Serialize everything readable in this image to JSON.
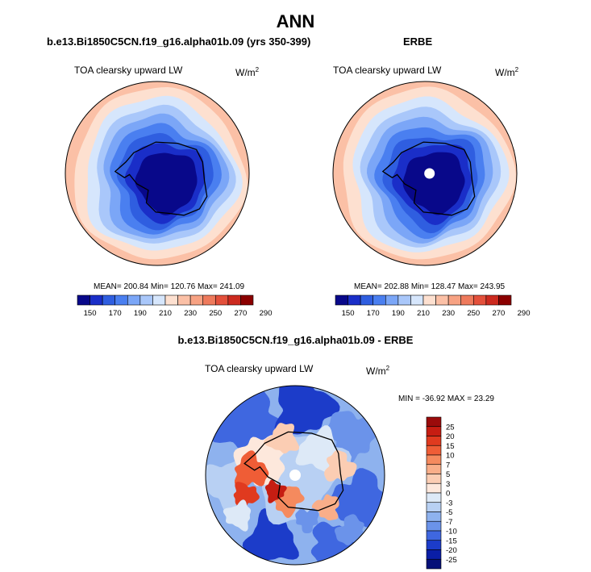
{
  "page": {
    "title": "ANN",
    "left_title": "b.e13.Bi1850C5CN.f19_g16.alpha01b.09 (yrs 350-399)",
    "right_title": "ERBE",
    "diff_title": "b.e13.Bi1850C5CN.f19_g16.alpha01b.09 - ERBE"
  },
  "chart_data": [
    {
      "type": "heatmap",
      "projection": "south-polar-stereographic",
      "name": "model",
      "variable": "TOA clearsky upward LW",
      "units": "W/m",
      "units_exponent": "2",
      "stats_text": "MEAN= 200.84  Min= 120.76  Max= 241.09",
      "mean": 200.84,
      "min": 120.76,
      "max": 241.09,
      "levels": [
        "150",
        "170",
        "190",
        "210",
        "230",
        "250",
        "270",
        "290"
      ],
      "colors": [
        "#08088a",
        "#1a2ec8",
        "#2f5ee0",
        "#4a7ff0",
        "#7ba6f7",
        "#a9c7fa",
        "#d6e6fc",
        "#fde0d0",
        "#fbc0a6",
        "#f7a283",
        "#ee7a5c",
        "#e3503b",
        "#cc2a1f",
        "#8b0000"
      ]
    },
    {
      "type": "heatmap",
      "projection": "south-polar-stereographic",
      "name": "observations",
      "variable": "TOA clearsky upward LW",
      "units": "W/m",
      "units_exponent": "2",
      "stats_text": "MEAN= 202.88  Min= 128.47  Max= 243.95",
      "mean": 202.88,
      "min": 128.47,
      "max": 243.95,
      "levels": [
        "150",
        "170",
        "190",
        "210",
        "230",
        "250",
        "270",
        "290"
      ],
      "colors": [
        "#08088a",
        "#1a2ec8",
        "#2f5ee0",
        "#4a7ff0",
        "#7ba6f7",
        "#a9c7fa",
        "#d6e6fc",
        "#fde0d0",
        "#fbc0a6",
        "#f7a283",
        "#ee7a5c",
        "#e3503b",
        "#cc2a1f",
        "#8b0000"
      ]
    },
    {
      "type": "heatmap",
      "projection": "south-polar-stereographic",
      "name": "difference",
      "variable": "TOA clearsky upward LW",
      "units": "W/m",
      "units_exponent": "2",
      "stats_text": "MIN = -36.92 MAX =  23.29",
      "min": -36.92,
      "max": 23.29,
      "levels": [
        "25",
        "20",
        "15",
        "10",
        "7",
        "5",
        "3",
        "0",
        "-3",
        "-5",
        "-7",
        "-10",
        "-15",
        "-20",
        "-25"
      ],
      "colors": [
        "#9b0b0b",
        "#c61d12",
        "#e03a1f",
        "#ef5d36",
        "#f58a5e",
        "#f9ae89",
        "#fbcdb3",
        "#fde8dc",
        "#dde9f7",
        "#b8d0f3",
        "#8eb2ee",
        "#6b93ea",
        "#3f67e0",
        "#1c3cc9",
        "#0a1ea6",
        "#061078"
      ]
    }
  ]
}
